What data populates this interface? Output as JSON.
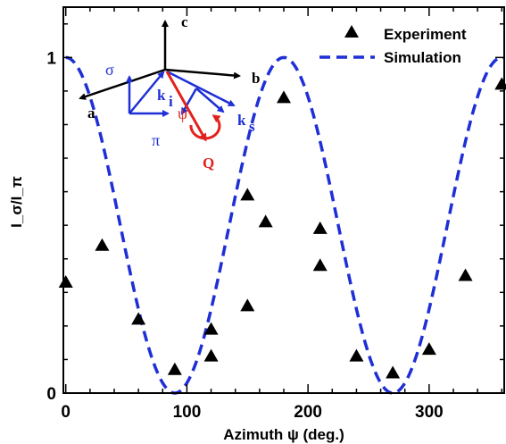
{
  "chart_data": {
    "type": "scatter",
    "xlabel": "Azimuth ψ (deg.)",
    "ylabel": "I_σ/I_π",
    "xlim": [
      -2,
      362
    ],
    "ylim": [
      0,
      1.15
    ],
    "xticks": [
      0,
      100,
      200,
      300
    ],
    "xtick_labels": [
      "0",
      "100",
      "200",
      "300"
    ],
    "yticks": [
      0,
      1
    ],
    "ytick_labels": [
      "0",
      "1"
    ],
    "legend_position": "top-right",
    "series": [
      {
        "name": "Experiment",
        "kind": "markers",
        "marker": "triangle",
        "color": "#000000",
        "x": [
          0,
          30,
          60,
          90,
          120,
          120,
          150,
          150,
          165,
          180,
          210,
          210,
          240,
          270,
          300,
          330,
          360
        ],
        "y": [
          0.33,
          0.44,
          0.22,
          0.07,
          0.19,
          0.11,
          0.26,
          0.59,
          0.51,
          0.88,
          0.49,
          0.38,
          0.11,
          0.06,
          0.13,
          0.35,
          0.92
        ]
      },
      {
        "name": "Simulation",
        "kind": "dashed-line",
        "color": "#1f2fd6",
        "formula": "cos^2(psi)",
        "x_start": 0,
        "x_end": 362
      }
    ],
    "inset_labels": {
      "c": "c",
      "b": "b",
      "a": "a",
      "sigma": "σ",
      "pi": "π",
      "ki": "k",
      "ki_sub": "i",
      "ks": "k",
      "ks_sub": "s",
      "psi": "ψ",
      "Q": "Q"
    }
  }
}
